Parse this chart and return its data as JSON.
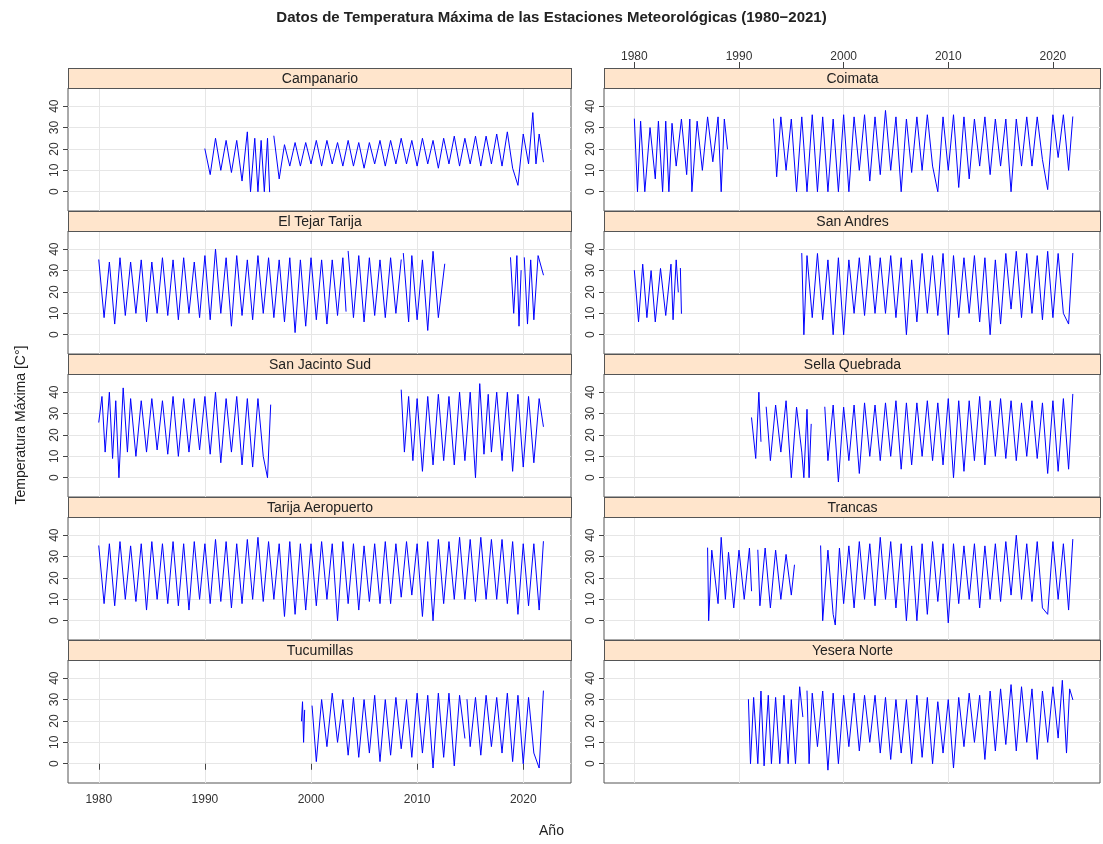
{
  "chart_data": [
    {
      "type": "line",
      "title": "Campanario",
      "annotations": [
        "Datos de Temperatura Máxima de las Estaciones Meteorológicas (1980−2021)"
      ],
      "color": "#0000ff",
      "marker": "none",
      "line_style": "solid",
      "grid": true,
      "tick_labels": "y",
      "x": [
        1990,
        1990.5,
        1991,
        1991.5,
        1992,
        1992.5,
        1993,
        1993.5,
        1994,
        1994.3,
        1994.7,
        1995,
        1995.3,
        1995.6,
        1995.9,
        1996.1,
        1996.2,
        1996.5,
        1997,
        1997.5,
        1998,
        1998.5,
        1999,
        1999.5,
        2000,
        2000.5,
        2001,
        2001.5,
        2002,
        2002.5,
        2003,
        2003.5,
        2004,
        2004.5,
        2005,
        2005.5,
        2006,
        2006.5,
        2007,
        2007.5,
        2008,
        2008.5,
        2009,
        2009.5,
        2010,
        2010.5,
        2011,
        2011.5,
        2012,
        2012.5,
        2013,
        2013.5,
        2014,
        2014.5,
        2015,
        2015.5,
        2016,
        2016.5,
        2017,
        2017.5,
        2018,
        2018.5,
        2019,
        2019.5,
        2020,
        2020.5,
        2020.9,
        2021.2,
        2021.5,
        2021.9
      ],
      "values": [
        20,
        8,
        25,
        10,
        24,
        9,
        24,
        5,
        28,
        0,
        25,
        0,
        24,
        0,
        25,
        0,
        null,
        26,
        6,
        22,
        12,
        23,
        12,
        23,
        13,
        24,
        12,
        24,
        13,
        23,
        12,
        24,
        12,
        23,
        11,
        23,
        13,
        24,
        12,
        24,
        13,
        25,
        13,
        24,
        12,
        25,
        13,
        24,
        11,
        25,
        13,
        26,
        12,
        25,
        13,
        26,
        12,
        26,
        13,
        27,
        12,
        28,
        11,
        3,
        27,
        13,
        37,
        13,
        27,
        14
      ],
      "xlim": [
        1977.1,
        2024.5
      ],
      "xticks": [
        1980,
        1990,
        2000,
        2010,
        2020
      ],
      "ylim": [
        -9,
        48.5
      ],
      "yticks": [
        0,
        10,
        20,
        30,
        40
      ]
    },
    {
      "type": "line",
      "title": "Coimata",
      "color": "#0000ff",
      "marker": "none",
      "line_style": "solid",
      "grid": true,
      "tick_labels": "y",
      "x": [
        1980,
        1980.3,
        1980.6,
        1981,
        1981.5,
        1982,
        1982.3,
        1982.7,
        1983,
        1983.3,
        1983.6,
        1984,
        1984.5,
        1985,
        1985.3,
        1985.5,
        1986,
        1986.5,
        1987,
        1987.5,
        1988,
        1988.3,
        1988.6,
        1988.9,
        1989,
        1993.3,
        1993.6,
        1994,
        1994.5,
        1995,
        1995.5,
        1996,
        1996.5,
        1997,
        1997.5,
        1998,
        1998.5,
        1999,
        1999.5,
        2000,
        2000.5,
        2001,
        2001.5,
        2002,
        2002.5,
        2003,
        2003.5,
        2004,
        2004.5,
        2005,
        2005.5,
        2006,
        2006.5,
        2007,
        2007.5,
        2008,
        2008.5,
        2009,
        2009.5,
        2010,
        2010.5,
        2011,
        2011.5,
        2012,
        2012.5,
        2013,
        2013.5,
        2014,
        2014.5,
        2015,
        2015.5,
        2016,
        2016.5,
        2017,
        2017.5,
        2018,
        2018.5,
        2019,
        2019.5,
        2020,
        2020.5,
        2021,
        2021.5,
        2021.9
      ],
      "values": [
        34,
        0,
        33,
        0,
        30,
        6,
        33,
        0,
        33,
        0,
        32,
        12,
        34,
        8,
        34,
        0,
        33,
        10,
        35,
        14,
        35,
        0,
        34,
        20,
        null,
        34,
        7,
        35,
        10,
        34,
        0,
        35,
        0,
        36,
        0,
        35,
        0,
        34,
        0,
        36,
        0,
        35,
        10,
        36,
        5,
        35,
        8,
        38,
        10,
        35,
        0,
        34,
        9,
        35,
        10,
        36,
        12,
        0,
        35,
        10,
        36,
        2,
        35,
        6,
        34,
        12,
        35,
        8,
        34,
        12,
        34,
        0,
        34,
        12,
        35,
        12,
        35,
        15,
        1,
        36,
        16,
        36,
        10,
        35
      ],
      "xlim": [
        1977.1,
        2024.5
      ],
      "xticks": [
        1980,
        1990,
        2000,
        2010,
        2020
      ],
      "x2lim": [
        1977.1,
        2024.5
      ],
      "x2ticks": [
        1980,
        1990,
        2000,
        2010,
        2020
      ],
      "ylim": [
        -9,
        48.5
      ],
      "yticks": [
        0,
        10,
        20,
        30,
        40
      ]
    },
    {
      "type": "line",
      "title": "El Tejar Tarija",
      "color": "#0000ff",
      "marker": "none",
      "line_style": "solid",
      "grid": true,
      "tick_labels": "y",
      "x": [
        1980,
        1980.5,
        1981,
        1981.5,
        1982,
        1982.5,
        1983,
        1983.5,
        1984,
        1984.5,
        1985,
        1985.5,
        1986,
        1986.5,
        1987,
        1987.5,
        1988,
        1988.5,
        1989,
        1989.5,
        1990,
        1990.5,
        1991,
        1991.5,
        1992,
        1992.5,
        1993,
        1993.5,
        1994,
        1994.5,
        1995,
        1995.5,
        1996,
        1996.5,
        1997,
        1997.5,
        1998,
        1998.5,
        1999,
        1999.5,
        2000,
        2000.5,
        2001,
        2001.5,
        2002,
        2002.5,
        2003,
        2003.3,
        2003.4,
        2003.5,
        2004,
        2004.5,
        2005,
        2005.5,
        2006,
        2006.5,
        2007,
        2007.5,
        2008,
        2008.5,
        2008.6,
        2008.7,
        2009.2,
        2009.5,
        2010,
        2010.5,
        2011,
        2011.5,
        2012,
        2012.6,
        2012.7,
        2018.8,
        2019.1,
        2019.4,
        2019.6,
        2019.8,
        2019.9,
        2020.1,
        2020.4,
        2020.7,
        2021,
        2021.4,
        2021.9
      ],
      "values": [
        35,
        8,
        34,
        5,
        36,
        9,
        34,
        10,
        35,
        6,
        34,
        10,
        36,
        9,
        35,
        7,
        36,
        10,
        34,
        8,
        37,
        7,
        40,
        10,
        36,
        4,
        37,
        9,
        35,
        7,
        37,
        10,
        36,
        8,
        35,
        6,
        36,
        1,
        35,
        4,
        36,
        7,
        35,
        5,
        35,
        9,
        36,
        11,
        null,
        39,
        8,
        37,
        6,
        36,
        9,
        35,
        8,
        36,
        10,
        35,
        null,
        38,
        6,
        37,
        7,
        35,
        2,
        39,
        8,
        33,
        null,
        36,
        10,
        37,
        4,
        30,
        null,
        36,
        5,
        35,
        7,
        37,
        28
      ],
      "xlim": [
        1977.1,
        2024.5
      ],
      "xticks": [
        1980,
        1990,
        2000,
        2010,
        2020
      ],
      "ylim": [
        -9,
        48.5
      ],
      "yticks": [
        0,
        10,
        20,
        30,
        40
      ]
    },
    {
      "type": "line",
      "title": "San Andres",
      "color": "#0000ff",
      "marker": "none",
      "line_style": "solid",
      "grid": true,
      "tick_labels": "y",
      "x": [
        1980,
        1980.4,
        1980.8,
        1981.2,
        1981.6,
        1982,
        1982.5,
        1983,
        1983.5,
        1983.7,
        1984,
        1984.2,
        1984.3,
        1984.4,
        1984.5,
        1984.6,
        1996,
        1996.2,
        1996.5,
        1997,
        1997.5,
        1998,
        1998.5,
        1999,
        1999.5,
        2000,
        2000.5,
        2001,
        2001.5,
        2002,
        2002.5,
        2003,
        2003.5,
        2004,
        2004.5,
        2005,
        2005.5,
        2006,
        2006.5,
        2007,
        2007.5,
        2008,
        2008.5,
        2009,
        2009.5,
        2010,
        2010.5,
        2011,
        2011.5,
        2012,
        2012.5,
        2013,
        2013.5,
        2014,
        2014.5,
        2015,
        2015.5,
        2016,
        2016.5,
        2017,
        2017.5,
        2018,
        2018.5,
        2019,
        2019.5,
        2020,
        2020.5,
        2021,
        2021.5,
        2021.9
      ],
      "values": [
        30,
        6,
        33,
        8,
        30,
        6,
        31,
        9,
        33,
        7,
        35,
        20,
        null,
        31,
        10,
        null,
        38,
        0,
        37,
        8,
        38,
        7,
        35,
        0,
        36,
        0,
        35,
        10,
        36,
        9,
        37,
        10,
        36,
        10,
        37,
        8,
        36,
        0,
        35,
        6,
        38,
        10,
        37,
        9,
        38,
        0,
        37,
        8,
        36,
        10,
        37,
        6,
        36,
        0,
        35,
        5,
        38,
        12,
        39,
        8,
        38,
        10,
        37,
        7,
        39,
        8,
        38,
        10,
        5,
        38
      ],
      "xlim": [
        1977.1,
        2024.5
      ],
      "xticks": [
        1980,
        1990,
        2000,
        2010,
        2020
      ],
      "ylim": [
        -9,
        48.5
      ],
      "yticks": [
        0,
        10,
        20,
        30,
        40
      ]
    },
    {
      "type": "line",
      "title": "San Jacinto Sud",
      "ylabel": "Temperatura Máxima [C°]",
      "color": "#0000ff",
      "marker": "none",
      "line_style": "solid",
      "grid": true,
      "tick_labels": "y",
      "x": [
        1980,
        1980.3,
        1980.6,
        1981,
        1981.3,
        1981.6,
        1981.9,
        1982.3,
        1982.7,
        1983,
        1983.5,
        1984,
        1984.5,
        1985,
        1985.5,
        1986,
        1986.5,
        1987,
        1987.5,
        1988,
        1988.5,
        1989,
        1989.5,
        1990,
        1990.5,
        1991,
        1991.5,
        1992,
        1992.5,
        1993,
        1993.5,
        1994,
        1994.5,
        1995,
        1995.5,
        1995.9,
        1996.2,
        1996.3,
        2008.5,
        2008.8,
        2009.2,
        2009.6,
        2010,
        2010.5,
        2011,
        2011.5,
        2012,
        2012.5,
        2013,
        2013.5,
        2014,
        2014.5,
        2015,
        2015.5,
        2015.9,
        2016.3,
        2016.7,
        2017,
        2017.5,
        2018,
        2018.5,
        2019,
        2019.5,
        2020,
        2020.5,
        2021,
        2021.5,
        2021.9
      ],
      "values": [
        26,
        38,
        12,
        40,
        9,
        36,
        0,
        42,
        12,
        37,
        10,
        36,
        12,
        37,
        13,
        36,
        11,
        38,
        10,
        37,
        12,
        37,
        13,
        38,
        11,
        40,
        7,
        37,
        12,
        38,
        6,
        37,
        5,
        37,
        10,
        0,
        34,
        null,
        41,
        12,
        38,
        8,
        37,
        3,
        38,
        6,
        39,
        8,
        38,
        6,
        40,
        8,
        40,
        0,
        44,
        11,
        39,
        12,
        40,
        8,
        40,
        3,
        39,
        5,
        38,
        7,
        37,
        24
      ],
      "xlim": [
        1977.1,
        2024.5
      ],
      "xticks": [
        1980,
        1990,
        2000,
        2010,
        2020
      ],
      "ylim": [
        -9,
        48.5
      ],
      "yticks": [
        0,
        10,
        20,
        30,
        40
      ]
    },
    {
      "type": "line",
      "title": "Sella Quebrada",
      "color": "#0000ff",
      "marker": "none",
      "line_style": "solid",
      "grid": true,
      "tick_labels": "y",
      "x": [
        1991.2,
        1991.6,
        1991.9,
        1992.1,
        1992.2,
        1992.6,
        1993,
        1993.5,
        1994,
        1994.5,
        1995,
        1995.5,
        1996,
        1996.2,
        1996.5,
        1996.7,
        1996.9,
        1997,
        1998.2,
        1998.5,
        1999,
        1999.5,
        2000,
        2000.5,
        2001,
        2001.5,
        2002,
        2002.5,
        2003,
        2003.5,
        2004,
        2004.5,
        2005,
        2005.5,
        2006,
        2006.5,
        2007,
        2007.5,
        2008,
        2008.5,
        2009,
        2009.5,
        2010,
        2010.5,
        2011,
        2011.5,
        2012,
        2012.5,
        2013,
        2013.5,
        2014,
        2014.5,
        2015,
        2015.5,
        2016,
        2016.5,
        2017,
        2017.5,
        2018,
        2018.5,
        2019,
        2019.5,
        2020,
        2020.5,
        2021,
        2021.5,
        2021.9
      ],
      "values": [
        28,
        9,
        40,
        17,
        null,
        33,
        8,
        34,
        12,
        36,
        0,
        33,
        12,
        0,
        32,
        0,
        25,
        null,
        33,
        8,
        34,
        -2,
        33,
        8,
        34,
        2,
        35,
        10,
        34,
        8,
        35,
        10,
        36,
        4,
        35,
        6,
        35,
        10,
        36,
        8,
        35,
        6,
        37,
        0,
        36,
        3,
        36,
        8,
        38,
        6,
        36,
        10,
        37,
        9,
        36,
        8,
        35,
        10,
        36,
        9,
        35,
        2,
        36,
        3,
        37,
        4,
        39
      ],
      "xlim": [
        1977.1,
        2024.5
      ],
      "xticks": [
        1980,
        1990,
        2000,
        2010,
        2020
      ],
      "ylim": [
        -9,
        48.5
      ],
      "yticks": [
        0,
        10,
        20,
        30,
        40
      ]
    },
    {
      "type": "line",
      "title": "Tarija Aeropuerto",
      "color": "#0000ff",
      "marker": "none",
      "line_style": "solid",
      "grid": true,
      "tick_labels": "y",
      "x": [
        1980,
        1980.5,
        1981,
        1981.5,
        1982,
        1982.5,
        1983,
        1983.5,
        1984,
        1984.5,
        1985,
        1985.5,
        1986,
        1986.5,
        1987,
        1987.5,
        1988,
        1988.5,
        1989,
        1989.5,
        1990,
        1990.5,
        1991,
        1991.5,
        1992,
        1992.5,
        1993,
        1993.5,
        1994,
        1994.5,
        1995,
        1995.5,
        1996,
        1996.5,
        1997,
        1997.5,
        1998,
        1998.5,
        1999,
        1999.5,
        2000,
        2000.5,
        2001,
        2001.5,
        2002,
        2002.5,
        2003,
        2003.5,
        2004,
        2004.5,
        2005,
        2005.5,
        2006,
        2006.5,
        2007,
        2007.5,
        2008,
        2008.5,
        2009,
        2009.5,
        2010,
        2010.5,
        2011,
        2011.5,
        2012,
        2012.5,
        2013,
        2013.5,
        2014,
        2014.5,
        2015,
        2015.5,
        2016,
        2016.5,
        2017,
        2017.5,
        2018,
        2018.5,
        2019,
        2019.5,
        2020,
        2020.5,
        2021,
        2021.5,
        2021.9
      ],
      "values": [
        35,
        8,
        36,
        7,
        37,
        10,
        35,
        9,
        36,
        5,
        37,
        10,
        36,
        8,
        37,
        7,
        36,
        5,
        37,
        10,
        36,
        8,
        38,
        9,
        37,
        6,
        36,
        8,
        38,
        10,
        39,
        9,
        37,
        10,
        36,
        2,
        37,
        3,
        36,
        5,
        36,
        7,
        37,
        10,
        36,
        0,
        37,
        8,
        36,
        5,
        35,
        9,
        36,
        8,
        37,
        8,
        36,
        11,
        37,
        12,
        36,
        2,
        37,
        0,
        38,
        8,
        37,
        10,
        39,
        10,
        38,
        9,
        39,
        10,
        38,
        10,
        38,
        8,
        37,
        3,
        36,
        7,
        36,
        5,
        37
      ],
      "xlim": [
        1977.1,
        2024.5
      ],
      "xticks": [
        1980,
        1990,
        2000,
        2010,
        2020
      ],
      "ylim": [
        -9,
        48.5
      ],
      "yticks": [
        0,
        10,
        20,
        30,
        40
      ]
    },
    {
      "type": "line",
      "title": "Trancas",
      "color": "#0000ff",
      "marker": "none",
      "line_style": "solid",
      "grid": true,
      "tick_labels": "y",
      "x": [
        1987,
        1987.1,
        1987.4,
        1988,
        1988.3,
        1988.7,
        1989,
        1989.5,
        1990,
        1990.5,
        1991,
        1991.2,
        1991.3,
        1991.8,
        1992,
        1992.5,
        1993,
        1993.5,
        1994,
        1994.5,
        1995,
        1995.3,
        1995.4,
        1997.8,
        1998,
        1998.5,
        1999,
        1999.2,
        1999.6,
        2000,
        2000.5,
        2001,
        2001.5,
        2002,
        2002.5,
        2003,
        2003.5,
        2004,
        2004.5,
        2005,
        2005.5,
        2006,
        2006.5,
        2007,
        2007.5,
        2008,
        2008.5,
        2009,
        2009.5,
        2010,
        2010.5,
        2011,
        2011.5,
        2012,
        2012.5,
        2013,
        2013.5,
        2014,
        2014.5,
        2015,
        2015.5,
        2016,
        2016.5,
        2017,
        2017.5,
        2018,
        2018.5,
        2019,
        2019.5,
        2020,
        2020.5,
        2021,
        2021.5,
        2021.9
      ],
      "values": [
        34,
        0,
        33,
        8,
        39,
        10,
        32,
        6,
        33,
        10,
        34,
        14,
        null,
        33,
        7,
        34,
        6,
        33,
        10,
        31,
        12,
        26,
        null,
        35,
        0,
        33,
        3,
        -2,
        34,
        8,
        35,
        6,
        37,
        10,
        36,
        7,
        39,
        10,
        37,
        6,
        36,
        0,
        35,
        0,
        36,
        3,
        37,
        9,
        36,
        -1,
        36,
        8,
        35,
        10,
        36,
        6,
        35,
        10,
        36,
        9,
        37,
        12,
        40,
        10,
        36,
        9,
        37,
        6,
        3,
        37,
        10,
        36,
        5,
        38
      ],
      "xlim": [
        1977.1,
        2024.5
      ],
      "xticks": [
        1980,
        1990,
        2000,
        2010,
        2020
      ],
      "ylim": [
        -9,
        48.5
      ],
      "yticks": [
        0,
        10,
        20,
        30,
        40
      ]
    },
    {
      "type": "line",
      "title": "Tucumillas",
      "xlabel": "Año",
      "color": "#0000ff",
      "marker": "none",
      "line_style": "solid",
      "grid": true,
      "x": [
        1999.1,
        1999.2,
        1999.3,
        1999.4,
        1999.5,
        2000.1,
        2000.5,
        2001,
        2001.5,
        2002,
        2002.5,
        2003,
        2003.5,
        2004,
        2004.5,
        2005,
        2005.5,
        2006,
        2006.5,
        2007,
        2007.5,
        2008,
        2008.5,
        2009,
        2009.5,
        2010,
        2010.5,
        2011,
        2011.5,
        2012,
        2012.5,
        2013,
        2013.5,
        2014,
        2014.5,
        2014.6,
        2014.7,
        2015,
        2015.5,
        2016,
        2016.5,
        2017,
        2017.5,
        2018,
        2018.5,
        2019,
        2019.5,
        2020,
        2020.5,
        2021,
        2021.5,
        2021.9
      ],
      "values": [
        20,
        29,
        10,
        25,
        null,
        27,
        1,
        30,
        8,
        33,
        10,
        30,
        4,
        31,
        3,
        30,
        5,
        32,
        1,
        30,
        4,
        31,
        7,
        30,
        3,
        33,
        5,
        32,
        -2,
        33,
        3,
        33,
        -1,
        32,
        12,
        null,
        30,
        8,
        31,
        4,
        32,
        8,
        31,
        5,
        33,
        1,
        32,
        0,
        31,
        5,
        -2,
        34
      ],
      "xlim": [
        1977.1,
        2024.5
      ],
      "xticks": [
        1980,
        1990,
        2000,
        2010,
        2020
      ],
      "ylim": [
        -9,
        48.5
      ],
      "yticks": [
        0,
        10,
        20,
        30,
        40
      ]
    },
    {
      "type": "line",
      "title": "Yesera Norte",
      "color": "#0000ff",
      "marker": "none",
      "line_style": "solid",
      "grid": true,
      "x": [
        1990.9,
        1991.1,
        1991.4,
        1991.8,
        1992.1,
        1992.4,
        1992.8,
        1993.1,
        1993.5,
        1993.9,
        1994.3,
        1994.7,
        1995,
        1995.4,
        1995.8,
        1996.1,
        1996.2,
        1996.5,
        1996.7,
        1997,
        1997.5,
        1998,
        1998.5,
        1999,
        1999.5,
        2000,
        2000.5,
        2001,
        2001.5,
        2002,
        2002.5,
        2003,
        2003.5,
        2004,
        2004.5,
        2005,
        2005.5,
        2006,
        2006.5,
        2007,
        2007.5,
        2008,
        2008.5,
        2009,
        2009.5,
        2010,
        2010.5,
        2011,
        2011.5,
        2012,
        2012.5,
        2013,
        2013.5,
        2014,
        2014.5,
        2015,
        2015.5,
        2016,
        2016.5,
        2017,
        2017.5,
        2018,
        2018.5,
        2019,
        2019.5,
        2020,
        2020.5,
        2020.9,
        2021.3,
        2021.6,
        2021.9
      ],
      "values": [
        30,
        0,
        31,
        0,
        34,
        -1,
        32,
        0,
        31,
        0,
        32,
        0,
        30,
        0,
        36,
        22,
        null,
        34,
        0,
        33,
        8,
        34,
        -3,
        33,
        0,
        32,
        8,
        33,
        6,
        32,
        10,
        32,
        5,
        31,
        2,
        30,
        5,
        30,
        0,
        32,
        3,
        31,
        0,
        29,
        5,
        30,
        -2,
        31,
        8,
        33,
        10,
        32,
        2,
        34,
        6,
        35,
        9,
        37,
        6,
        36,
        10,
        35,
        2,
        34,
        10,
        36,
        12,
        39,
        5,
        35,
        30
      ],
      "xlim": [
        1977.1,
        2024.5
      ],
      "xticks": [
        1980,
        1990,
        2000,
        2010,
        2020
      ],
      "ylim": [
        -9,
        48.5
      ],
      "yticks": [
        0,
        10,
        20,
        30,
        40
      ],
      "tick_labels": "y"
    }
  ]
}
